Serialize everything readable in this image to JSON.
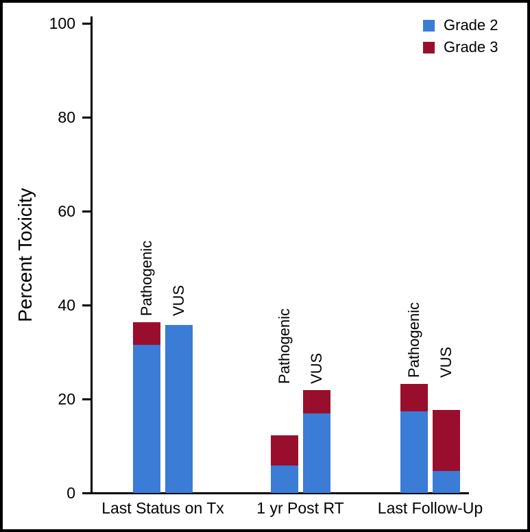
{
  "figure": {
    "background": "#ffffff",
    "frame_color": "#000000"
  },
  "chart_data": {
    "type": "bar",
    "stacked": true,
    "title": "",
    "ylabel": "Percent Toxicity",
    "xlabel": "",
    "ylim": [
      0,
      100
    ],
    "yticks": [
      0,
      20,
      40,
      60,
      80,
      100
    ],
    "grid": false,
    "legend_position": "top-right",
    "legend": [
      {
        "label": "Grade 2",
        "color": "#3A7CD6"
      },
      {
        "label": "Grade 3",
        "color": "#9A0E2D"
      }
    ],
    "groups": [
      {
        "category": "Last Status on Tx",
        "bars": [
          {
            "label": "Pathogenic",
            "grade2": 31.6,
            "grade3": 4.7,
            "total": 36.3
          },
          {
            "label": "VUS",
            "grade2": 35.7,
            "grade3": 0,
            "total": 35.7
          }
        ]
      },
      {
        "category": "1 yr Post RT",
        "bars": [
          {
            "label": "Pathogenic",
            "grade2": 5.9,
            "grade3": 6.4,
            "total": 12.3
          },
          {
            "label": "VUS",
            "grade2": 17.0,
            "grade3": 4.9,
            "total": 21.9
          }
        ]
      },
      {
        "category": "Last Follow-Up",
        "bars": [
          {
            "label": "Pathogenic",
            "grade2": 17.4,
            "grade3": 5.8,
            "total": 23.2
          },
          {
            "label": "VUS",
            "grade2": 4.7,
            "grade3": 12.9,
            "total": 17.6
          }
        ]
      }
    ]
  }
}
